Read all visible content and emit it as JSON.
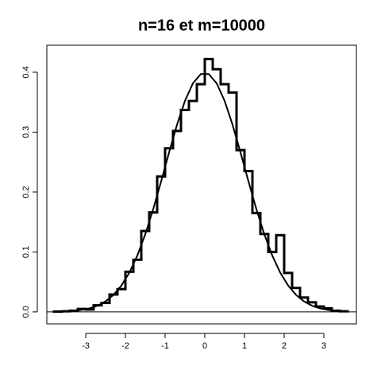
{
  "chart_data": {
    "type": "histogram",
    "title": "n=16 et m=10000",
    "bins": [
      -3.8,
      -3.6,
      -3.4,
      -3.2,
      -3.0,
      -2.8,
      -2.6,
      -2.4,
      -2.2,
      -2.0,
      -1.8,
      -1.6,
      -1.4,
      -1.2,
      -1.0,
      -0.8,
      -0.6,
      -0.4,
      -0.2,
      0.0,
      0.2,
      0.4,
      0.6,
      0.8,
      1.0,
      1.2,
      1.4,
      1.6,
      1.8,
      2.0,
      2.2,
      2.4,
      2.6,
      2.8,
      3.0,
      3.2,
      3.4,
      3.6
    ],
    "values": [
      0.0005,
      0.001,
      0.002,
      0.005,
      0.004,
      0.011,
      0.015,
      0.029,
      0.038,
      0.067,
      0.087,
      0.135,
      0.166,
      0.226,
      0.273,
      0.302,
      0.337,
      0.352,
      0.38,
      0.422,
      0.405,
      0.38,
      0.366,
      0.27,
      0.235,
      0.165,
      0.13,
      0.1,
      0.128,
      0.065,
      0.04,
      0.024,
      0.016,
      0.009,
      0.006,
      0.002,
      0.001
    ],
    "color": "#000000",
    "curve": {
      "x": [
        -3.7,
        -3.5,
        -3.3,
        -3.1,
        -2.9,
        -2.7,
        -2.5,
        -2.3,
        -2.1,
        -1.9,
        -1.7,
        -1.5,
        -1.3,
        -1.1,
        -0.9,
        -0.7,
        -0.5,
        -0.3,
        -0.1,
        0.1,
        0.3,
        0.5,
        0.7,
        0.9,
        1.1,
        1.3,
        1.5,
        1.7,
        1.9,
        2.1,
        2.3,
        2.5,
        2.7,
        2.9,
        3.1,
        3.3,
        3.5
      ],
      "y": [
        0.0004,
        0.0009,
        0.0017,
        0.0033,
        0.006,
        0.0104,
        0.0175,
        0.0283,
        0.044,
        0.0656,
        0.094,
        0.1295,
        0.1714,
        0.2179,
        0.2661,
        0.3123,
        0.3521,
        0.3814,
        0.397,
        0.397,
        0.3814,
        0.3521,
        0.3123,
        0.2661,
        0.2179,
        0.1714,
        0.1295,
        0.094,
        0.0656,
        0.044,
        0.0283,
        0.0175,
        0.0104,
        0.006,
        0.0033,
        0.0017,
        0.0009
      ]
    },
    "xlim": [
      -3.98,
      3.82
    ],
    "ylim": [
      -0.02,
      0.445
    ],
    "xticks": [
      -3,
      -2,
      -1,
      0,
      1,
      2,
      3
    ],
    "yticks": [
      {
        "value": 0,
        "label": "0.0"
      },
      {
        "value": 0.1,
        "label": "0.1"
      },
      {
        "value": 0.2,
        "label": "0.2"
      },
      {
        "value": 0.3,
        "label": "0.3"
      },
      {
        "value": 0.4,
        "label": "0.4"
      }
    ]
  }
}
